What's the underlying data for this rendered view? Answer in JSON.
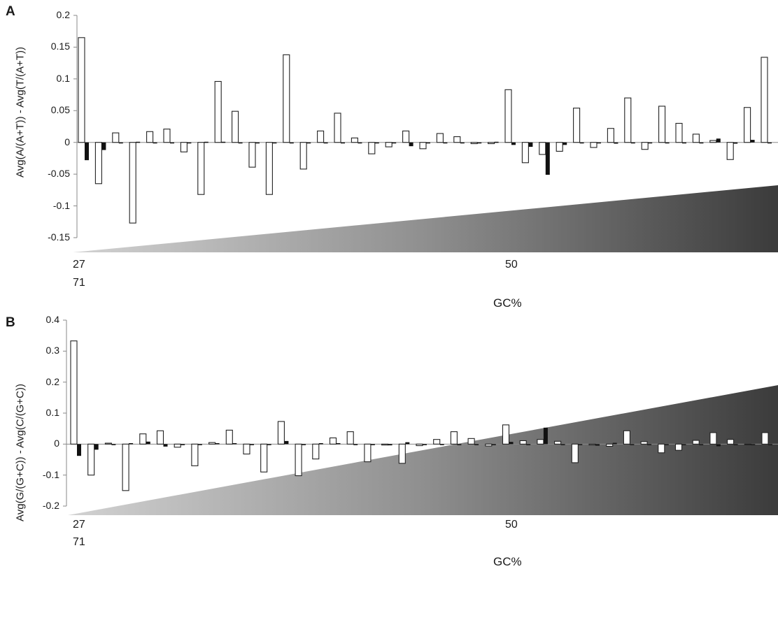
{
  "chart_data": [
    {
      "panel": "A",
      "type": "bar",
      "ylabel": "Avg(A/(A+T)) - Avg(T/(A+T))",
      "xlabel": "GC%",
      "x_tick_labels": [
        "27",
        "50",
        "71"
      ],
      "ylim": [
        -0.15,
        0.2
      ],
      "yticks": [
        "0.2",
        "0.15",
        "0.1",
        "0.05",
        "0",
        "-0.05",
        "-0.1",
        "-0.15"
      ],
      "grid": false,
      "gradient_wedge": true,
      "series": [
        {
          "fill": "white",
          "values": [
            0.165,
            -0.065,
            0.015,
            -0.127,
            0.017,
            0.021,
            -0.015,
            -0.082,
            0.096,
            0.049,
            -0.039,
            -0.082,
            0.138,
            -0.042,
            0.018,
            0.046,
            0.007,
            -0.018,
            -0.007,
            0.018,
            -0.01,
            0.014,
            0.009,
            -0.002,
            -0.002,
            0.083,
            -0.032,
            -0.019,
            -0.014,
            0.054,
            -0.008,
            0.022,
            0.07,
            -0.011,
            0.057,
            0.03,
            0.013,
            0.003,
            -0.027,
            0.055,
            0.134
          ]
        },
        {
          "fill": "black",
          "values": [
            -0.028,
            -0.012,
            0.0,
            0.001,
            0.0,
            0.0,
            0.0,
            0.001,
            0.001,
            0.0,
            0.0,
            0.0,
            0.0,
            0.0,
            0.0,
            0.0,
            0.0,
            0.0,
            0.0,
            -0.006,
            0.0,
            0.0,
            0.0,
            0.0,
            0.001,
            -0.004,
            -0.007,
            -0.051,
            -0.004,
            0.0,
            0.0,
            -0.002,
            -0.001,
            0.0,
            0.0,
            0.0,
            0.0,
            0.006,
            -0.002,
            0.004,
            0.0
          ]
        }
      ]
    },
    {
      "panel": "B",
      "type": "bar",
      "ylabel": "Avg(G/(G+C)) - Avg(C/(G+C))",
      "xlabel": "GC%",
      "x_tick_labels": [
        "27",
        "50",
        "71"
      ],
      "ylim": [
        -0.2,
        0.4
      ],
      "yticks": [
        "0.4",
        "0.3",
        "0.2",
        "0.1",
        "0",
        "-0.1",
        "-0.2"
      ],
      "grid": false,
      "gradient_wedge": true,
      "series": [
        {
          "fill": "white",
          "values": [
            0.333,
            -0.1,
            0.003,
            -0.15,
            0.033,
            0.043,
            -0.01,
            -0.07,
            0.005,
            0.045,
            -0.032,
            -0.09,
            0.073,
            -0.102,
            -0.048,
            0.02,
            0.04,
            -0.057,
            -0.003,
            -0.062,
            -0.005,
            0.015,
            0.04,
            0.018,
            -0.006,
            0.062,
            0.011,
            0.015,
            0.009,
            -0.06,
            -0.003,
            -0.007,
            0.043,
            0.008,
            -0.028,
            -0.02,
            0.012,
            0.037,
            0.015,
            0.0,
            0.037
          ]
        },
        {
          "fill": "black",
          "values": [
            -0.038,
            -0.018,
            0.0,
            0.003,
            0.008,
            -0.008,
            0.0,
            0.0,
            0.003,
            0.003,
            -0.003,
            0.0,
            0.01,
            0.0,
            0.003,
            0.003,
            0.0,
            -0.003,
            -0.004,
            0.006,
            0.0,
            -0.003,
            0.0,
            0.0,
            0.0,
            0.007,
            0.0,
            0.053,
            0.0,
            0.0,
            -0.005,
            0.004,
            0.0,
            0.0,
            -0.002,
            0.0,
            0.0,
            -0.007,
            0.0,
            -0.003,
            0.0
          ]
        }
      ]
    }
  ]
}
